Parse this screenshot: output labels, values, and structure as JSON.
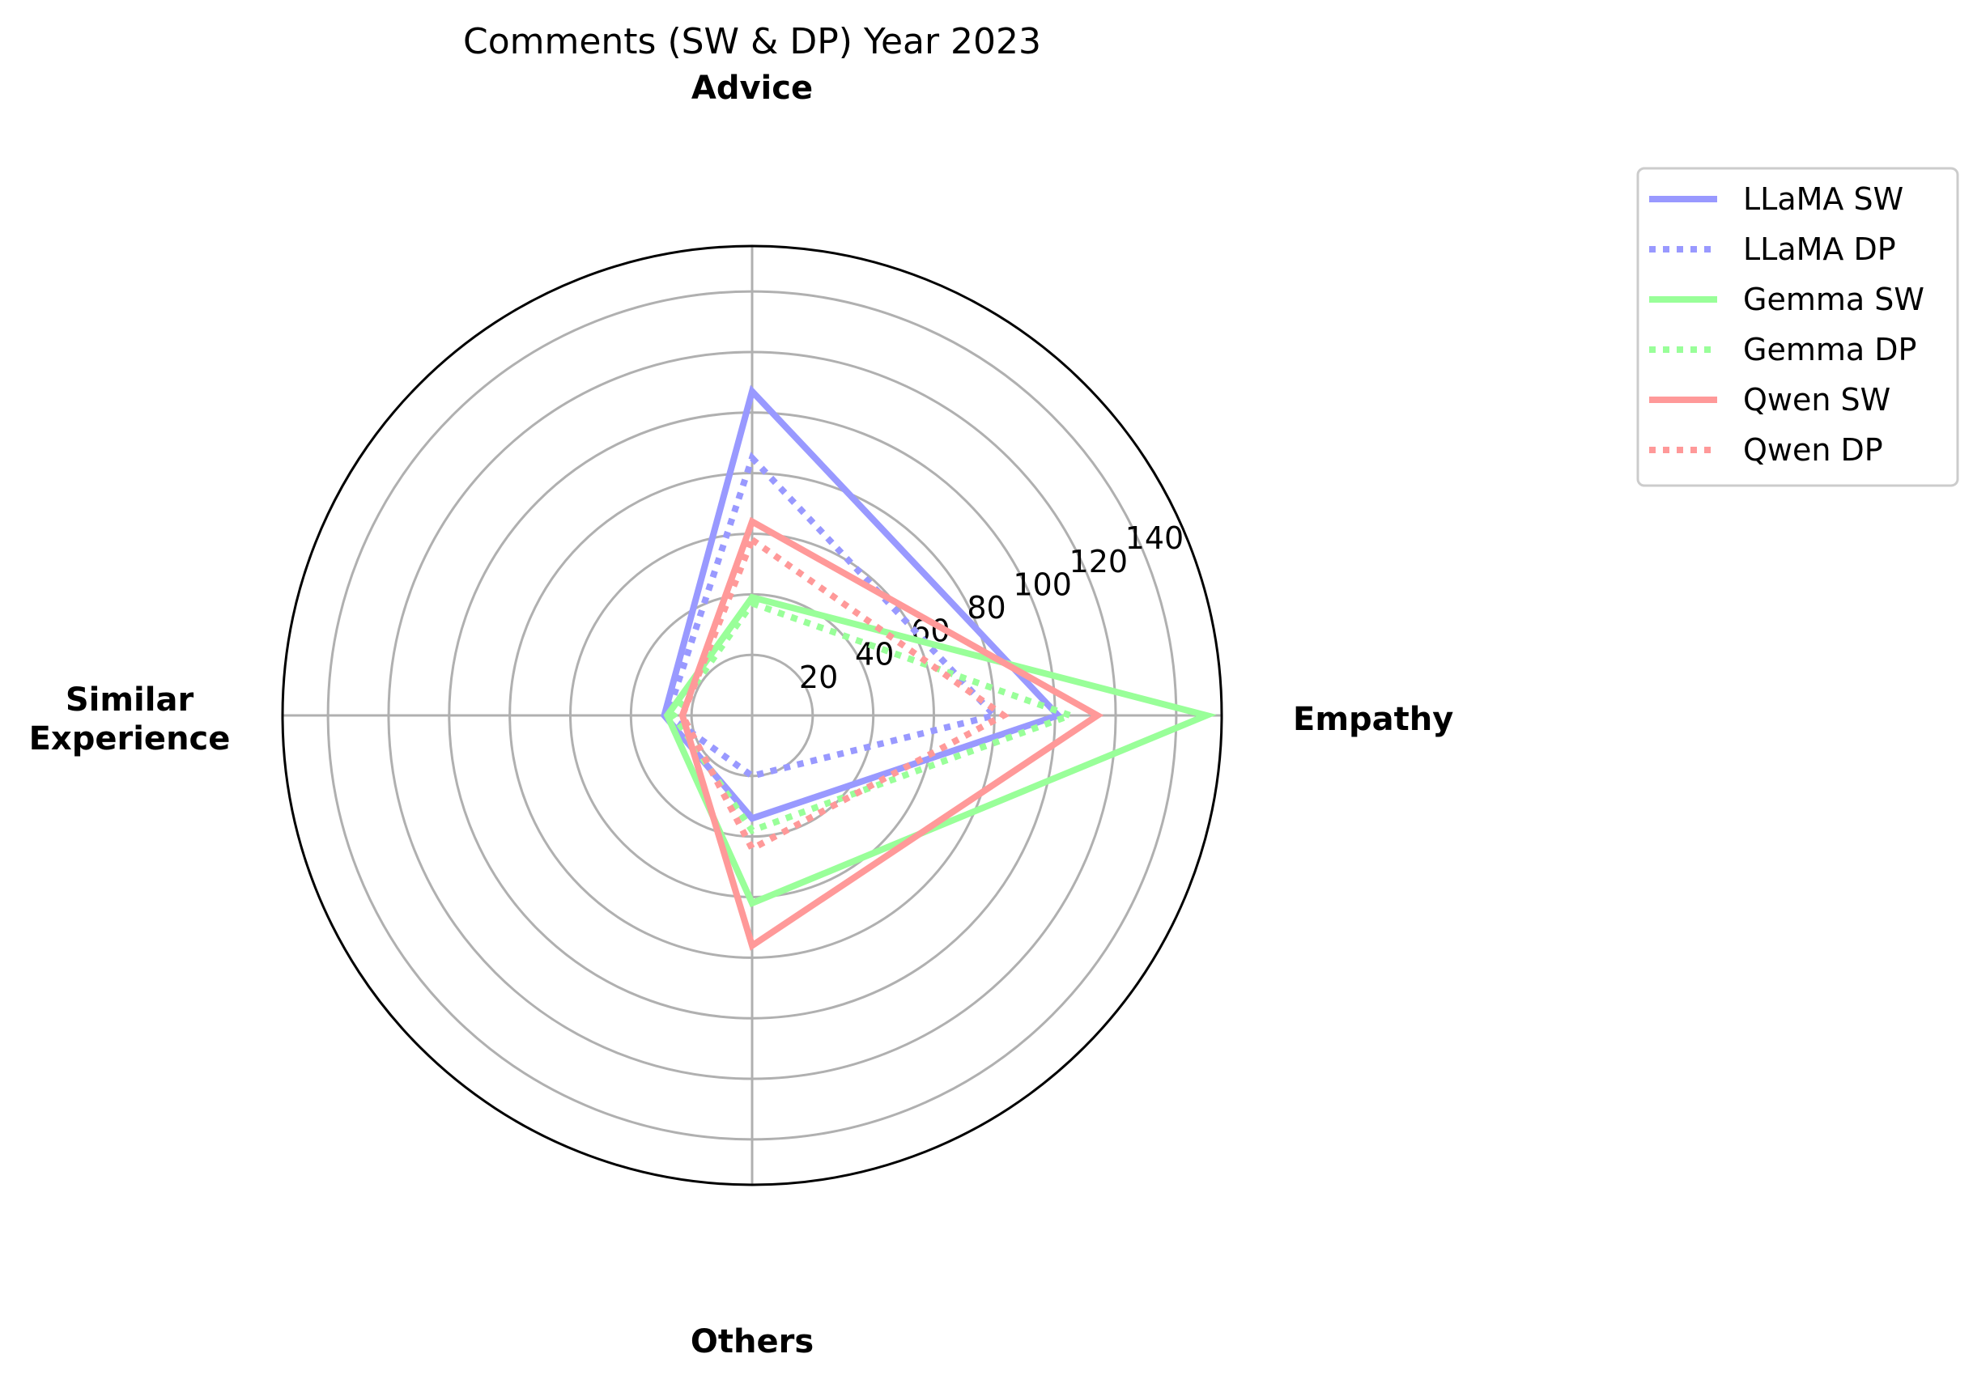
{
  "chart_data": {
    "type": "radar",
    "title": "Comments (SW & DP) Year 2023",
    "categories": [
      "Advice",
      "Empathy",
      "Others",
      "Similar Experience"
    ],
    "category_lines": [
      [
        "Advice"
      ],
      [
        "Empathy"
      ],
      [
        "Others"
      ],
      [
        "Similar",
        "Experience"
      ]
    ],
    "r_ticks": [
      20,
      40,
      60,
      80,
      100,
      120,
      140
    ],
    "r_max": 155,
    "grid": true,
    "legend_position": "outside-top-right",
    "series": [
      {
        "name": "LLaMA SW",
        "values": [
          107,
          101,
          34,
          29
        ],
        "color": "#9999ff",
        "style": "solid"
      },
      {
        "name": "LLaMA DP",
        "values": [
          85,
          80,
          20,
          28
        ],
        "color": "#9999ff",
        "style": "dotted"
      },
      {
        "name": "Gemma SW",
        "values": [
          39,
          150,
          62,
          28
        ],
        "color": "#99ff99",
        "style": "solid"
      },
      {
        "name": "Gemma DP",
        "values": [
          37,
          105,
          38,
          26
        ],
        "color": "#99ff99",
        "style": "dotted"
      },
      {
        "name": "Qwen SW",
        "values": [
          64,
          114,
          76,
          23
        ],
        "color": "#ff9999",
        "style": "solid"
      },
      {
        "name": "Qwen DP",
        "values": [
          58,
          83,
          44,
          23
        ],
        "color": "#ff9999",
        "style": "dotted"
      }
    ]
  }
}
